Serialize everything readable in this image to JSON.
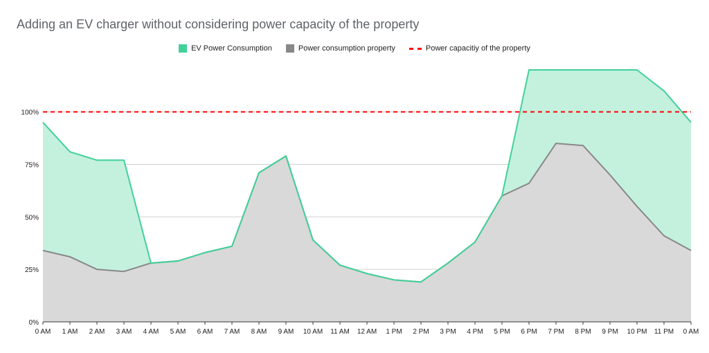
{
  "colors": {
    "ev": "#41d199",
    "ev_fill": "#c3f1de",
    "property": "#888888",
    "property_fill": "#d9d9d9",
    "capacity": "#ff0000"
  },
  "chart_data": {
    "type": "area",
    "title": "Adding an EV charger without considering power capacity of the property",
    "xlabel": "",
    "ylabel": "",
    "x": [
      "0 AM",
      "1 AM",
      "2 AM",
      "3 AM",
      "4 AM",
      "5 AM",
      "6 AM",
      "7 AM",
      "8 AM",
      "9 AM",
      "10 AM",
      "11 AM",
      "12 AM",
      "1 PM",
      "2 PM",
      "3 PM",
      "4 PM",
      "5 PM",
      "6 PM",
      "7 PM",
      "8 PM",
      "9 PM",
      "10 PM",
      "11 PM",
      "0 AM"
    ],
    "ylim": [
      0,
      1.2
    ],
    "yticks": [
      0,
      0.25,
      0.5,
      0.75,
      1.0
    ],
    "ytick_labels": [
      "0%",
      "25%",
      "50%",
      "75%",
      "100%"
    ],
    "grid": true,
    "legend_position": "top",
    "series": [
      {
        "name": "EV Power Consumption",
        "values": [
          0.95,
          0.81,
          0.77,
          0.77,
          0.28,
          0.29,
          0.33,
          0.36,
          0.71,
          0.79,
          0.39,
          0.27,
          0.23,
          0.2,
          0.19,
          0.28,
          0.38,
          0.6,
          1.2,
          1.2,
          1.2,
          1.2,
          1.2,
          1.1,
          0.95
        ]
      },
      {
        "name": "Power consumption property",
        "values": [
          0.34,
          0.31,
          0.25,
          0.24,
          0.28,
          0.29,
          0.33,
          0.36,
          0.71,
          0.79,
          0.39,
          0.27,
          0.23,
          0.2,
          0.19,
          0.28,
          0.38,
          0.6,
          0.66,
          0.85,
          0.84,
          0.7,
          0.55,
          0.41,
          0.34
        ]
      },
      {
        "name": "Power capacitiy of the property",
        "values": [
          1,
          1,
          1,
          1,
          1,
          1,
          1,
          1,
          1,
          1,
          1,
          1,
          1,
          1,
          1,
          1,
          1,
          1,
          1,
          1,
          1,
          1,
          1,
          1,
          1
        ]
      }
    ]
  }
}
